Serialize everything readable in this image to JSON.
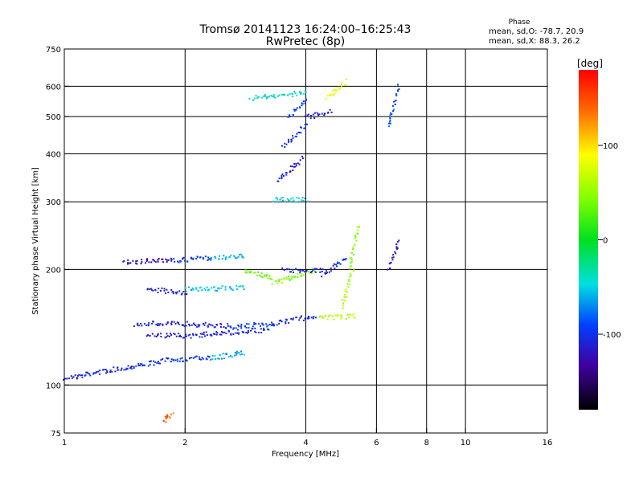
{
  "chart_data": {
    "type": "scatter",
    "title": "Tromsø 20141123 16:24:00–16:25:43",
    "subtitle": "RwPretec (8p)",
    "xlabel": "Frequency [MHz]",
    "ylabel": "Stationary phase Virtual Height [km]",
    "xscale": "log2",
    "yscale": "log",
    "xlim": [
      1,
      16
    ],
    "ylim": [
      75,
      750
    ],
    "xticks": [
      1,
      2,
      4,
      6,
      8,
      10,
      16
    ],
    "xtick_labels": [
      "1",
      "2",
      "4",
      "6",
      "8",
      "10",
      "16"
    ],
    "yticks": [
      75,
      100,
      200,
      300,
      400,
      500,
      600,
      750
    ],
    "ytick_labels": [
      "75",
      "100",
      "200",
      "300",
      "400",
      "500",
      "600",
      "750"
    ],
    "grid_x": [
      2,
      4,
      6,
      8,
      10
    ],
    "grid_y": [
      100,
      200,
      300,
      400,
      500,
      600
    ],
    "phase_header": "Phase",
    "phase_stats": [
      "mean, sd,O: -78.7, 20.9",
      "mean, sd,X: 88.3, 26.2"
    ],
    "colorbar": {
      "label": "[deg]",
      "range": [
        -180,
        180
      ],
      "ticks": [
        100,
        0,
        -100
      ],
      "tick_labels": [
        "100",
        "0",
        "-100"
      ]
    },
    "traces": [
      {
        "f": [
          1.0,
          1.12
        ],
        "h": [
          105,
          106
        ],
        "deg": -112
      },
      {
        "f": [
          1.12,
          1.45
        ],
        "h": [
          107,
          112
        ],
        "deg": -105
      },
      {
        "f": [
          1.45,
          1.85
        ],
        "h": [
          112,
          117
        ],
        "deg": -100
      },
      {
        "f": [
          1.85,
          2.3
        ],
        "h": [
          117,
          118
        ],
        "deg": -98
      },
      {
        "f": [
          2.3,
          2.8
        ],
        "h": [
          118,
          122
        ],
        "deg": -60
      },
      {
        "f": [
          1.5,
          1.95
        ],
        "h": [
          145,
          145
        ],
        "deg": -112
      },
      {
        "f": [
          1.95,
          2.6
        ],
        "h": [
          145,
          143
        ],
        "deg": -110
      },
      {
        "f": [
          2.6,
          3.3
        ],
        "h": [
          142,
          145
        ],
        "deg": -95
      },
      {
        "f": [
          3.3,
          4.2
        ],
        "h": [
          145,
          152
        ],
        "deg": -105
      },
      {
        "f": [
          1.6,
          2.2
        ],
        "h": [
          135,
          135
        ],
        "deg": -112
      },
      {
        "f": [
          2.2,
          3.2
        ],
        "h": [
          136,
          140
        ],
        "deg": -108
      },
      {
        "f": [
          1.6,
          2.0
        ],
        "h": [
          178,
          175
        ],
        "deg": -110
      },
      {
        "f": [
          2.0,
          2.8
        ],
        "h": [
          178,
          180
        ],
        "deg": -50
      },
      {
        "f": [
          1.4,
          1.85
        ],
        "h": [
          210,
          212
        ],
        "deg": -125
      },
      {
        "f": [
          1.85,
          2.3
        ],
        "h": [
          212,
          215
        ],
        "deg": -100
      },
      {
        "f": [
          2.3,
          2.8
        ],
        "h": [
          215,
          218
        ],
        "deg": -60
      },
      {
        "f": [
          2.8,
          3.3
        ],
        "h": [
          200,
          190
        ],
        "deg": 35
      },
      {
        "f": [
          3.3,
          4.2
        ],
        "h": [
          185,
          200
        ],
        "deg": 45
      },
      {
        "f": [
          3.5,
          4.4
        ],
        "h": [
          200,
          200
        ],
        "deg": -110
      },
      {
        "f": [
          4.4,
          5.0
        ],
        "h": [
          195,
          215
        ],
        "deg": -105
      },
      {
        "f": [
          4.3,
          5.3
        ],
        "h": [
          150,
          152
        ],
        "deg": 65
      },
      {
        "f": [
          4.9,
          5.2
        ],
        "h": [
          160,
          200
        ],
        "deg": 55
      },
      {
        "f": [
          5.1,
          5.4
        ],
        "h": [
          200,
          260
        ],
        "deg": 45
      },
      {
        "f": [
          3.4,
          3.9
        ],
        "h": [
          340,
          390
        ],
        "deg": -112
      },
      {
        "f": [
          3.5,
          4.0
        ],
        "h": [
          420,
          480
        ],
        "deg": -100
      },
      {
        "f": [
          3.6,
          4.0
        ],
        "h": [
          500,
          560
        ],
        "deg": -95
      },
      {
        "f": [
          2.9,
          4.0
        ],
        "h": [
          560,
          580
        ],
        "deg": -40
      },
      {
        "f": [
          4.0,
          4.6
        ],
        "h": [
          500,
          520
        ],
        "deg": -112
      },
      {
        "f": [
          4.5,
          5.0
        ],
        "h": [
          560,
          620
        ],
        "deg": 80
      },
      {
        "f": [
          3.3,
          4.0
        ],
        "h": [
          305,
          305
        ],
        "deg": -50
      },
      {
        "f": [
          6.4,
          6.8
        ],
        "h": [
          200,
          240
        ],
        "deg": -120
      },
      {
        "f": [
          6.4,
          6.8
        ],
        "h": [
          470,
          600
        ],
        "deg": -90
      },
      {
        "f": [
          1.75,
          1.85
        ],
        "h": [
          81,
          84
        ],
        "deg": 140
      }
    ]
  }
}
